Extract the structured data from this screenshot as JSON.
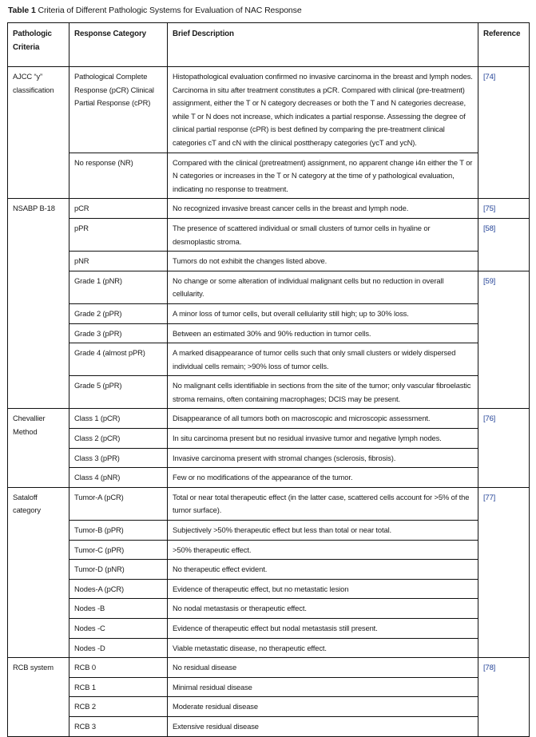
{
  "caption": {
    "label": "Table 1",
    "title": "Criteria of Different Pathologic Systems for Evaluation of NAC Response"
  },
  "headers": [
    "Pathologic Criteria",
    "Response Category",
    "Brief Description",
    "Reference"
  ],
  "groups": [
    {
      "criteria": "AJCC “y” classification",
      "rows": [
        {
          "category": "Pathological Complete Response (pCR) Clinical Partial Response (cPR)",
          "description": "Histopathological evaluation confirmed no invasive carcinoma in the breast and lymph nodes. Carcinoma in situ after treatment constitutes a pCR. Compared with clinical (pre-treatment) assignment, either the T or N category decreases or both the T and N categories decrease, while T or N does not increase, which indicates a partial response. Assessing the degree of clinical partial response (cPR) is best defined by comparing the pre-treatment clinical categories cT and cN with the clinical posttherapy categories (ycT and ycN).",
          "ref": "[74]",
          "refspan": 2
        },
        {
          "category": "No response (NR)",
          "description": "Compared with the clinical (pretreatment) assignment, no apparent change i4n either the T or N categories or increases in the T or N category at the time of y pathological evaluation, indicating no response to treatment."
        }
      ]
    },
    {
      "criteria": "NSABP B-18",
      "rows": [
        {
          "category": "pCR",
          "description": "No recognized invasive breast cancer cells in the breast and lymph node.",
          "ref": "[75]",
          "refspan": 1
        },
        {
          "category": "pPR",
          "description": "The presence of scattered individual or small clusters of tumor cells in hyaline or desmoplastic stroma.",
          "ref": "[58]",
          "refspan": 2
        },
        {
          "category": "pNR",
          "description": "Tumors do not exhibit the changes listed above."
        },
        {
          "category": "Grade 1 (pNR)",
          "description": "No change or some alteration of individual malignant cells but no reduction in overall cellularity.",
          "ref": "[59]",
          "refspan": 5
        },
        {
          "category": "Grade 2 (pPR)",
          "description": "A minor loss of tumor cells, but overall cellularity still high; up to 30% loss."
        },
        {
          "category": "Grade 3 (pPR)",
          "description": "Between an estimated 30% and 90% reduction in tumor cells."
        },
        {
          "category": "Grade 4 (almost pPR)",
          "description": "A marked disappearance of tumor cells such that only small clusters or widely dispersed individual cells remain; >90% loss of tumor cells."
        },
        {
          "category": "Grade 5 (pPR)",
          "description": "No malignant cells identifiable in sections from the site of the tumor; only vascular fibroelastic stroma remains, often containing macrophages; DCIS may be present."
        }
      ]
    },
    {
      "criteria": "Chevallier Method",
      "rows": [
        {
          "category": "Class 1 (pCR)",
          "description": "Disappearance of all tumors both on macroscopic and microscopic assessment.",
          "ref": "[76]",
          "refspan": 4
        },
        {
          "category": "Class 2 (pCR)",
          "description": "In situ carcinoma present but no residual invasive tumor and negative lymph nodes."
        },
        {
          "category": "Class 3 (pPR)",
          "description": "Invasive carcinoma present with stromal changes (sclerosis, fibrosis)."
        },
        {
          "category": "Class 4 (pNR)",
          "description": "Few or no modifications of the appearance of the tumor."
        }
      ]
    },
    {
      "criteria": "Sataloff category",
      "rows": [
        {
          "category": "Tumor-A (pCR)",
          "description": "Total or near total therapeutic effect (in the latter case, scattered cells account for >5% of the tumor surface).",
          "ref": "[77]",
          "refspan": 8
        },
        {
          "category": "Tumor-B (pPR)",
          "description": "Subjectively >50% therapeutic effect but less than total or near total."
        },
        {
          "category": "Tumor-C (pPR)",
          "description": ">50% therapeutic effect."
        },
        {
          "category": "Tumor-D (pNR)",
          "description": "No therapeutic effect evident."
        },
        {
          "category": "Nodes-A (pCR)",
          "description": "Evidence of therapeutic effect, but no metastatic lesion"
        },
        {
          "category": "Nodes -B",
          "description": "No nodal metastasis or therapeutic effect."
        },
        {
          "category": "Nodes -C",
          "description": "Evidence of therapeutic effect but nodal metastasis still present."
        },
        {
          "category": "Nodes -D",
          "description": "Viable metastatic disease, no therapeutic effect."
        }
      ]
    },
    {
      "criteria": "RCB system",
      "rows": [
        {
          "category": "RCB 0",
          "description": "No residual disease",
          "ref": "[78]",
          "refspan": 4
        },
        {
          "category": "RCB 1",
          "description": "Minimal residual disease"
        },
        {
          "category": "RCB 2",
          "description": "Moderate residual disease"
        },
        {
          "category": "RCB 3",
          "description": "Extensive residual disease"
        }
      ]
    }
  ],
  "colors": {
    "reference_link": "#1f3f95",
    "border": "#111111"
  }
}
